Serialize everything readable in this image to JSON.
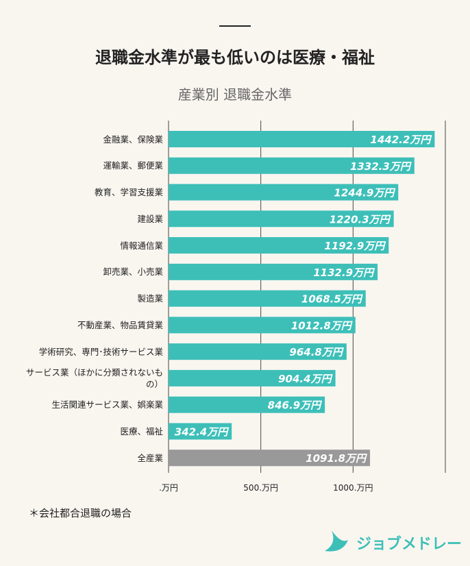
{
  "title": "退職金水準が最も低いのは医療・福祉",
  "note": "＊会社都合退職の場合",
  "logo": "ジョブメドレー",
  "chart_data": {
    "type": "bar",
    "orientation": "horizontal",
    "subtitle": "産業別 退職金水準",
    "categories": [
      "金融業、保険業",
      "運輸業、郵便業",
      "教育、学習支援業",
      "建設業",
      "情報通信業",
      "卸売業、小売業",
      "製造業",
      "不動産業、物品賃貸業",
      "学術研究、専門･技術サービス業",
      "サービス業（ほかに分類されないもの）",
      "生活関連サービス業、娯楽業",
      "医療、福祉",
      "全産業"
    ],
    "values": [
      1442.2,
      1332.3,
      1244.9,
      1220.3,
      1192.9,
      1132.9,
      1068.5,
      1012.8,
      964.8,
      904.4,
      846.9,
      342.4,
      1091.8
    ],
    "value_labels": [
      "1442.2万円",
      "1332.3万円",
      "1244.9万円",
      "1220.3万円",
      "1192.9万円",
      "1132.9万円",
      "1068.5万円",
      "1012.8万円",
      "964.8万円",
      "904.4万円",
      "846.9万円",
      "342.4万円",
      "1091.8万円"
    ],
    "colors": [
      "#3dbfb8",
      "#3dbfb8",
      "#3dbfb8",
      "#3dbfb8",
      "#3dbfb8",
      "#3dbfb8",
      "#3dbfb8",
      "#3dbfb8",
      "#3dbfb8",
      "#3dbfb8",
      "#3dbfb8",
      "#3dbfb8",
      "#999999"
    ],
    "xlim": [
      0,
      1500
    ],
    "xticks": [
      {
        "value": 0,
        "label": ".万円"
      },
      {
        "value": 500,
        "label": "500.万円"
      },
      {
        "value": 1000,
        "label": "1000.万円"
      }
    ],
    "grid": true
  }
}
